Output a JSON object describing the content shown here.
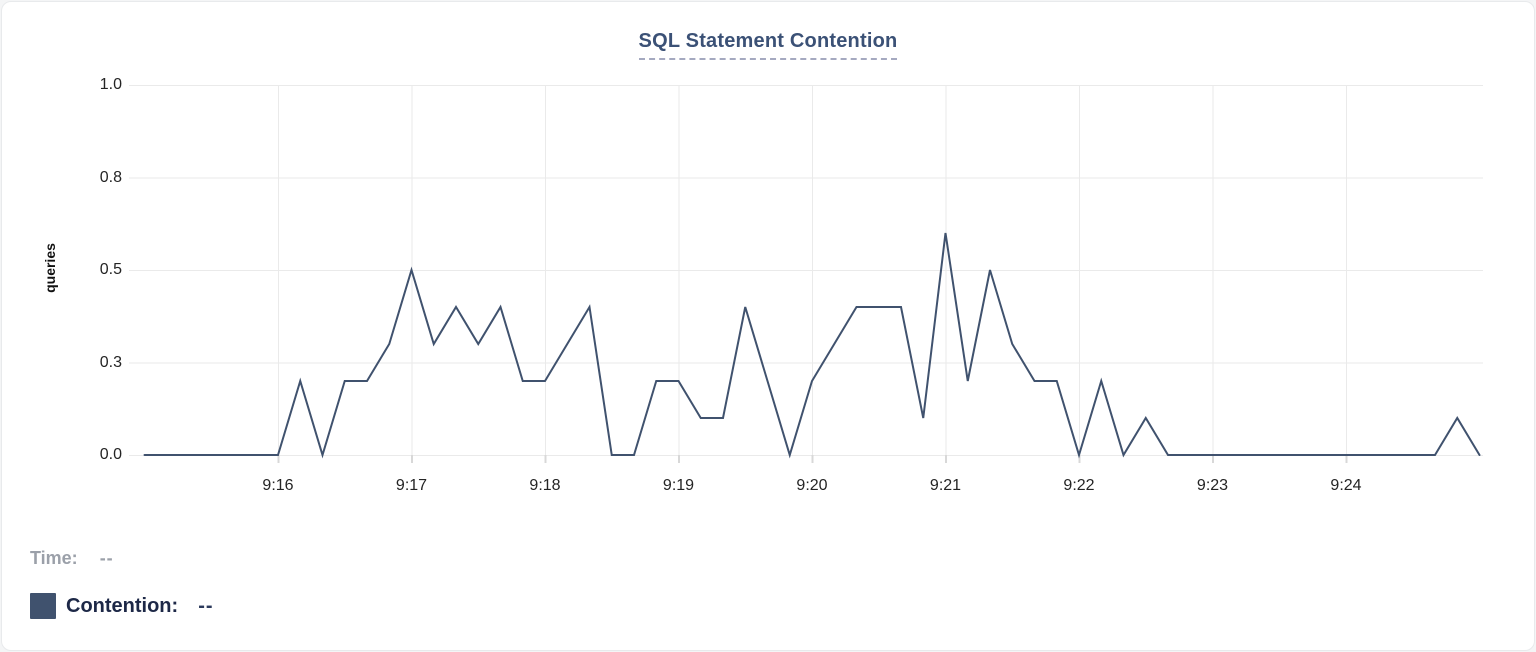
{
  "chart_data": {
    "type": "line",
    "title": "SQL Statement Contention",
    "ylabel": "queries",
    "ylim": [
      0,
      1.0
    ],
    "grid": true,
    "legend_position": "bottom-left",
    "ytick_labels": [
      "1.0",
      "0.8",
      "0.5",
      "0.3",
      "0.0"
    ],
    "ytick_values": [
      1.0,
      0.75,
      0.5,
      0.25,
      0.0
    ],
    "xtick_labels": [
      "9:16",
      "9:17",
      "9:18",
      "9:19",
      "9:20",
      "9:21",
      "9:22",
      "9:23",
      "9:24"
    ],
    "x_range": [
      "9:15:00",
      "9:25:00"
    ],
    "sample_interval_seconds": 10,
    "series": [
      {
        "name": "Contention",
        "color": "#40526e",
        "unit": "queries",
        "values": [
          0,
          0,
          0,
          0,
          0,
          0,
          0,
          0.2,
          0,
          0.2,
          0.2,
          0.3,
          0.5,
          0.3,
          0.4,
          0.3,
          0.4,
          0.2,
          0.2,
          0.3,
          0.4,
          0,
          0,
          0.2,
          0.2,
          0.1,
          0.1,
          0.4,
          0.2,
          0,
          0.2,
          0.3,
          0.4,
          0.4,
          0.4,
          0.1,
          0.6,
          0.2,
          0.5,
          0.3,
          0.2,
          0.2,
          0,
          0.2,
          0,
          0.1,
          0,
          0,
          0,
          0,
          0,
          0,
          0,
          0,
          0,
          0,
          0,
          0,
          0,
          0.1,
          0
        ]
      }
    ]
  },
  "legend": {
    "time_label": "Time:",
    "time_value": "--",
    "series_label": "Contention:",
    "series_value": "--",
    "swatch_color": "#40526e"
  },
  "colors": {
    "title": "#3b5176",
    "grid": "#eaeaea",
    "tick": "#d8d8d8"
  }
}
